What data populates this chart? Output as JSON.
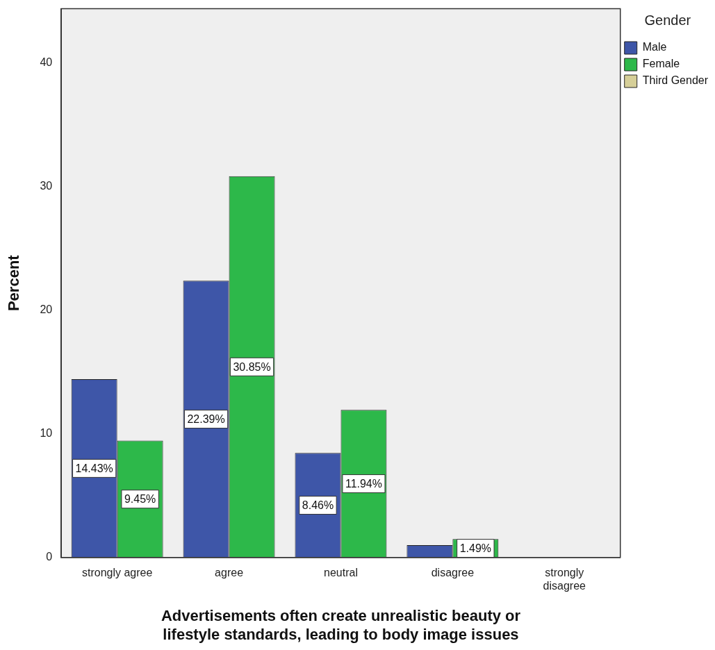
{
  "chart_data": {
    "type": "bar",
    "xlabel": "Advertisements often create unrealistic beauty or\nlifestyle standards, leading to body image issues",
    "ylabel": "Percent",
    "legend_title": "Gender",
    "categories": [
      "strongly agree",
      "agree",
      "neutral",
      "disagree",
      "strongly\ndisagree"
    ],
    "series": [
      {
        "name": "Male",
        "color": "#3e56a8",
        "values": [
          14.43,
          22.39,
          8.46,
          1.0,
          null
        ],
        "value_labels": [
          "14.43%",
          "22.39%",
          "8.46%",
          null,
          null
        ]
      },
      {
        "name": "Female",
        "color": "#2db84a",
        "values": [
          9.45,
          30.85,
          11.94,
          1.49,
          null
        ],
        "value_labels": [
          "9.45%",
          "30.85%",
          "11.94%",
          "1.49%",
          null
        ]
      },
      {
        "name": "Third Gender",
        "color": "#d6cf98",
        "values": [
          null,
          null,
          null,
          null,
          null
        ]
      }
    ],
    "ylim": [
      0,
      44.4
    ],
    "yticks": [
      0,
      10,
      20,
      30,
      40
    ],
    "grid": false,
    "legend": "top right"
  }
}
